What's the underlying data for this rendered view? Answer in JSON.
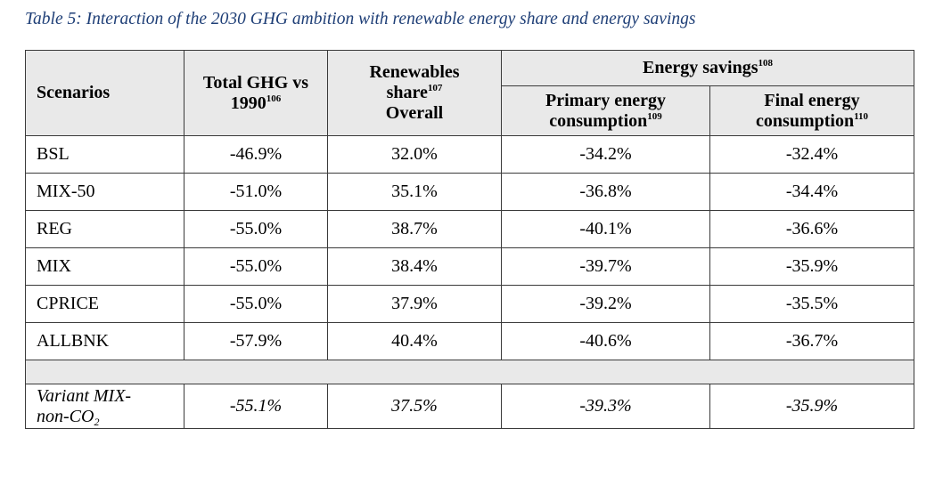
{
  "caption": "Table 5: Interaction of the 2030 GHG ambition with renewable energy share and energy savings",
  "headers": {
    "scenarios": "Scenarios",
    "ghg_line1": "Total GHG vs",
    "ghg_line2": "1990",
    "ghg_sup": "106",
    "res_line1": "Renewables",
    "res_line2": "share",
    "res_sup": "107",
    "res_line3": "Overall",
    "savings": "Energy savings",
    "savings_sup": "108",
    "primary_line1": "Primary energy",
    "primary_line2": "consumption",
    "primary_sup": "109",
    "final_line1": "Final energy",
    "final_line2": "consumption",
    "final_sup": "110"
  },
  "rows": [
    {
      "scenario": "BSL",
      "ghg": "-46.9%",
      "res": "32.0%",
      "primary": "-34.2%",
      "final": "-32.4%"
    },
    {
      "scenario": "MIX-50",
      "ghg": "-51.0%",
      "res": "35.1%",
      "primary": "-36.8%",
      "final": "-34.4%"
    },
    {
      "scenario": "REG",
      "ghg": "-55.0%",
      "res": "38.7%",
      "primary": "-40.1%",
      "final": "-36.6%"
    },
    {
      "scenario": "MIX",
      "ghg": "-55.0%",
      "res": "38.4%",
      "primary": "-39.7%",
      "final": "-35.9%"
    },
    {
      "scenario": "CPRICE",
      "ghg": "-55.0%",
      "res": "37.9%",
      "primary": "-39.2%",
      "final": "-35.5%"
    },
    {
      "scenario": "ALLBNK",
      "ghg": "-57.9%",
      "res": "40.4%",
      "primary": "-40.6%",
      "final": "-36.7%"
    }
  ],
  "variant": {
    "scenario_line1": "Variant MIX-",
    "scenario_line2": "non-CO",
    "scenario_sub": "2",
    "ghg": "-55.1%",
    "res": "37.5%",
    "primary": "-39.3%",
    "final": "-35.9%"
  },
  "colors": {
    "caption": "#1f3f77",
    "header_bg": "#e9e9e9",
    "border": "#3a3a3a"
  }
}
